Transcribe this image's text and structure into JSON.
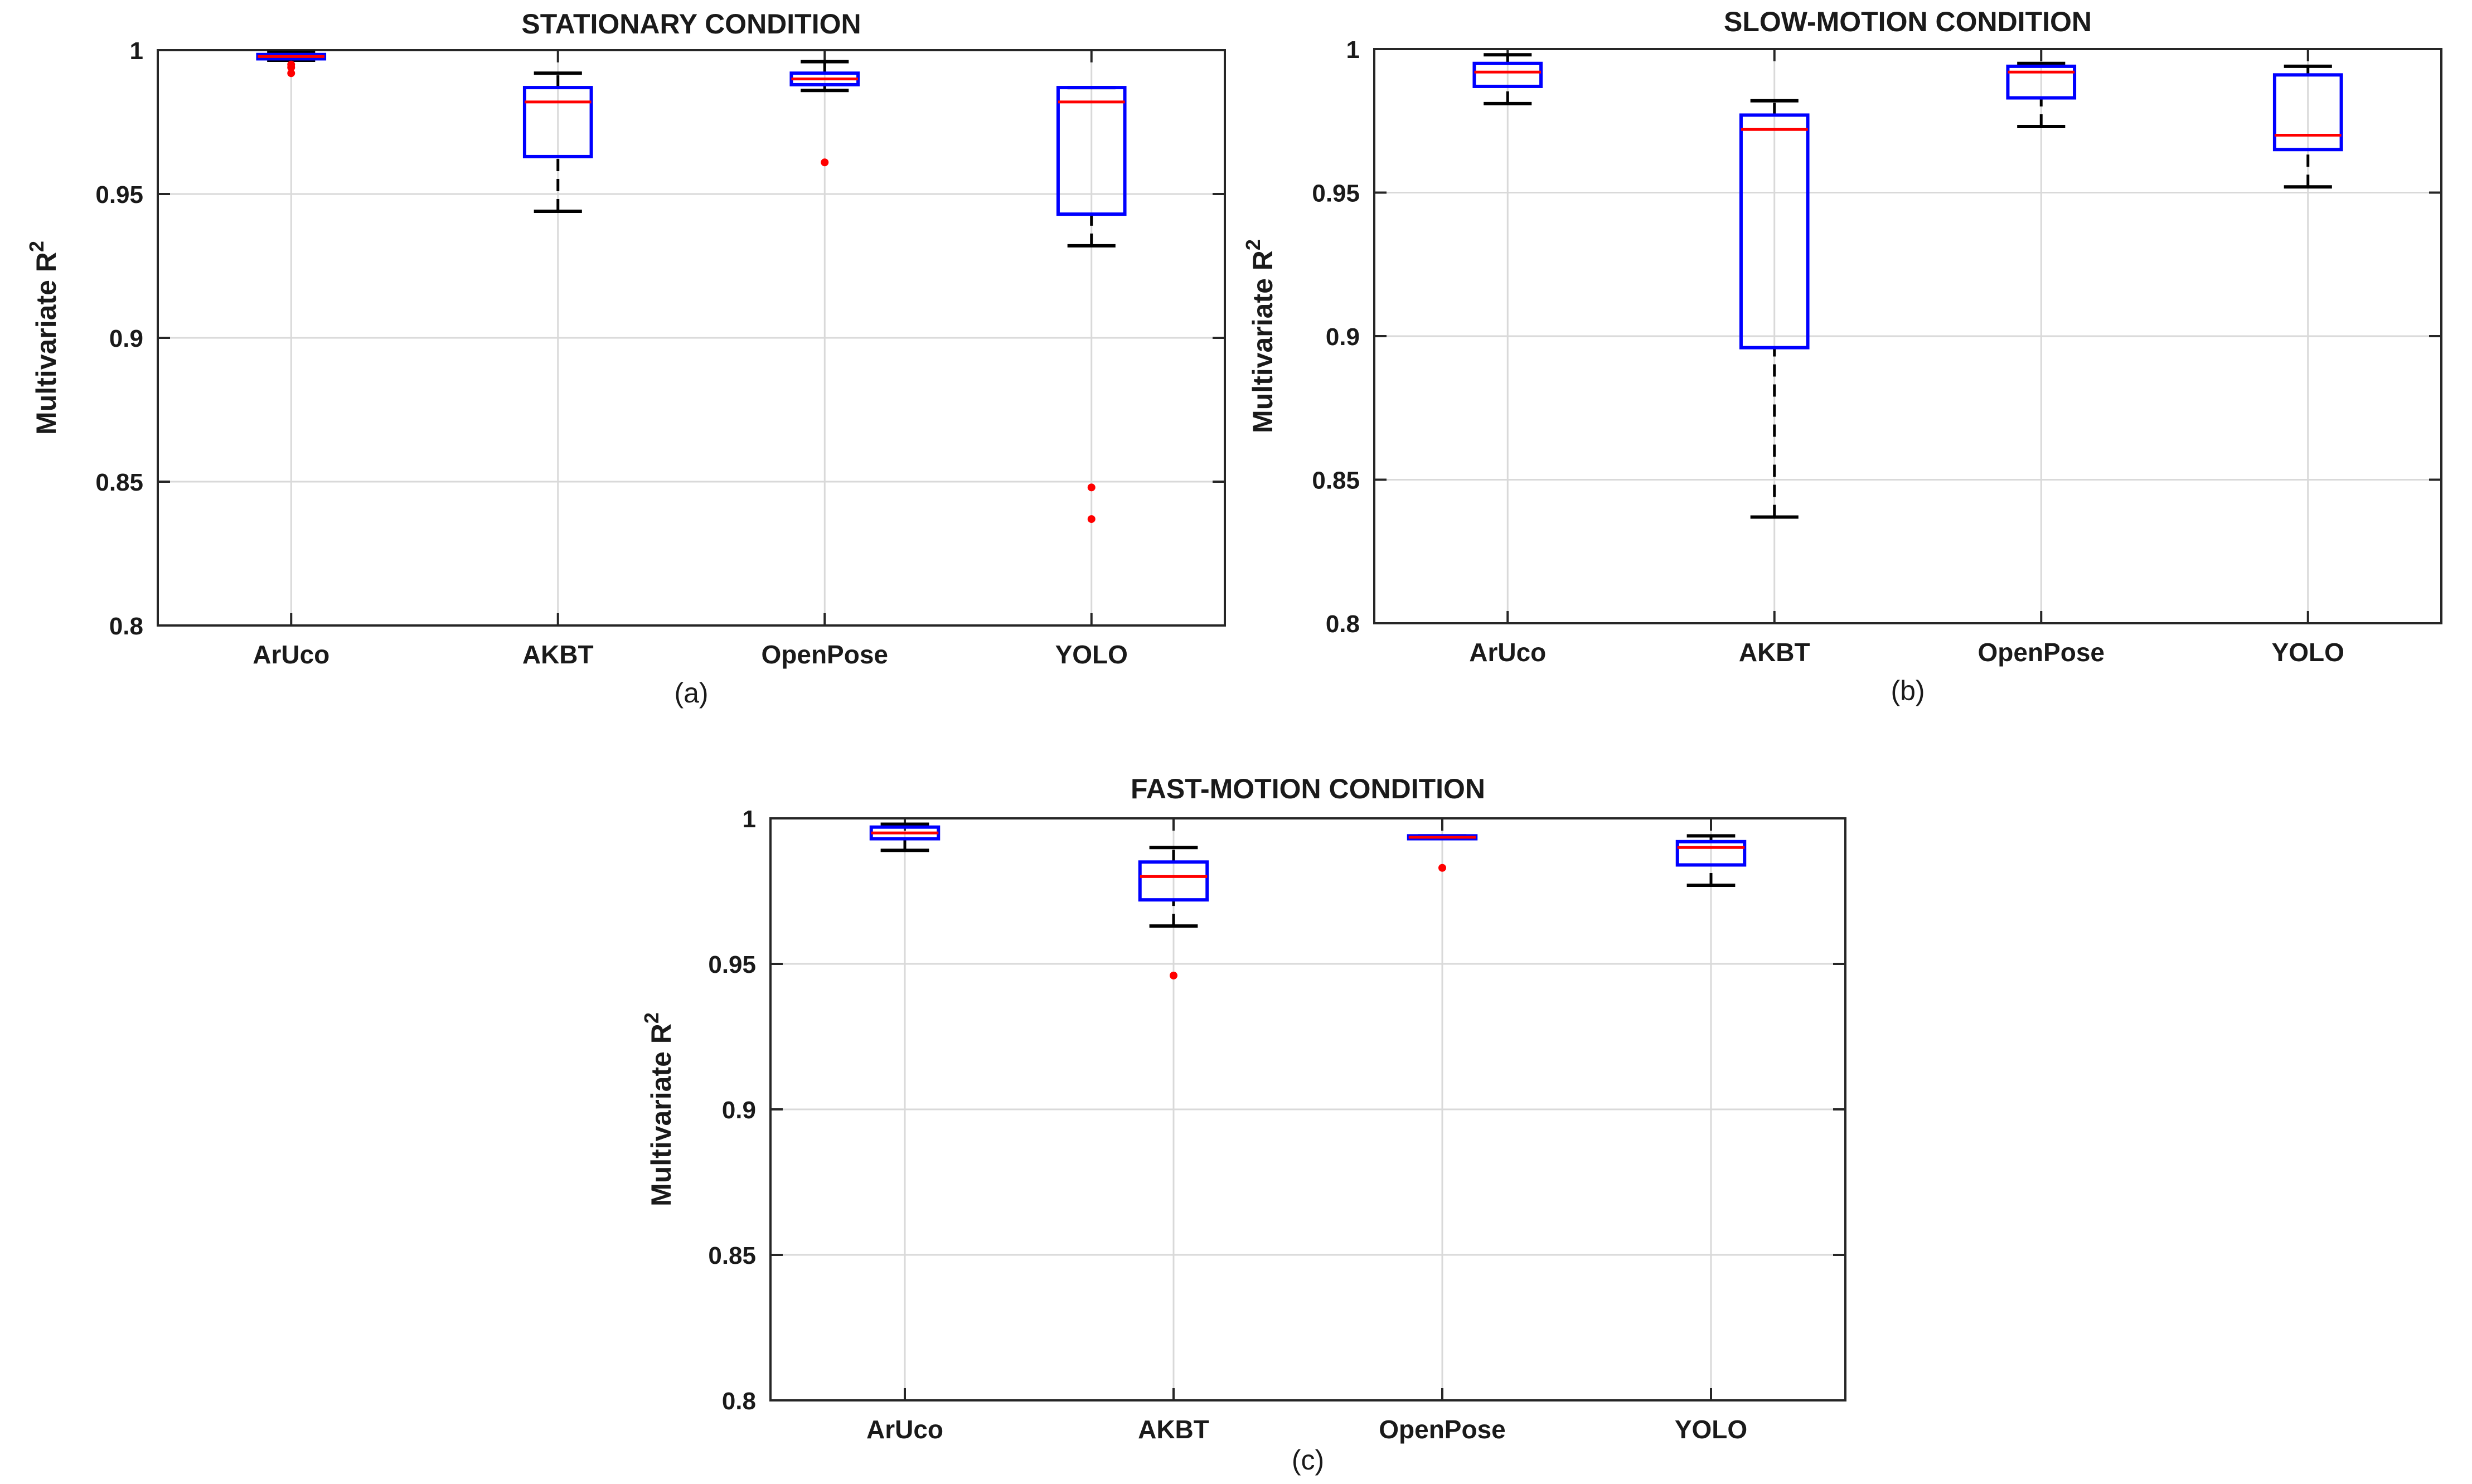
{
  "figure": {
    "ylabel_main": "Multivariate R",
    "ylabel_sup": "2"
  },
  "chart_data": [
    {
      "type": "box",
      "title": "STATIONARY CONDITION",
      "caption": "(a)",
      "categories": [
        "ArUco",
        "AKBT",
        "OpenPose",
        "YOLO"
      ],
      "ylim": [
        0.8,
        1.0
      ],
      "yticks": [
        "0.8",
        "0.85",
        "0.9",
        "0.95",
        "1"
      ],
      "grid": true,
      "boxes": [
        {
          "label": "ArUco",
          "whisker_low": 0.9965,
          "q1": 0.997,
          "median": 0.9978,
          "q3": 0.9985,
          "whisker_high": 0.9993,
          "outliers": [
            0.992,
            0.994,
            0.995
          ]
        },
        {
          "label": "AKBT",
          "whisker_low": 0.944,
          "q1": 0.963,
          "median": 0.982,
          "q3": 0.987,
          "whisker_high": 0.992,
          "outliers": []
        },
        {
          "label": "OpenPose",
          "whisker_low": 0.986,
          "q1": 0.988,
          "median": 0.99,
          "q3": 0.992,
          "whisker_high": 0.996,
          "outliers": [
            0.961
          ]
        },
        {
          "label": "YOLO",
          "whisker_low": 0.932,
          "q1": 0.943,
          "median": 0.982,
          "q3": 0.987,
          "whisker_high": 0.987,
          "outliers": [
            0.848,
            0.837
          ]
        }
      ]
    },
    {
      "type": "box",
      "title": "SLOW-MOTION CONDITION",
      "caption": "(b)",
      "categories": [
        "ArUco",
        "AKBT",
        "OpenPose",
        "YOLO"
      ],
      "ylim": [
        0.8,
        1.0
      ],
      "yticks": [
        "0.8",
        "0.85",
        "0.9",
        "0.95",
        "1"
      ],
      "grid": true,
      "boxes": [
        {
          "label": "ArUco",
          "whisker_low": 0.981,
          "q1": 0.987,
          "median": 0.992,
          "q3": 0.995,
          "whisker_high": 0.998,
          "outliers": []
        },
        {
          "label": "AKBT",
          "whisker_low": 0.837,
          "q1": 0.896,
          "median": 0.972,
          "q3": 0.977,
          "whisker_high": 0.982,
          "outliers": []
        },
        {
          "label": "OpenPose",
          "whisker_low": 0.973,
          "q1": 0.983,
          "median": 0.992,
          "q3": 0.994,
          "whisker_high": 0.995,
          "outliers": []
        },
        {
          "label": "YOLO",
          "whisker_low": 0.952,
          "q1": 0.965,
          "median": 0.97,
          "q3": 0.991,
          "whisker_high": 0.994,
          "outliers": []
        }
      ]
    },
    {
      "type": "box",
      "title": "FAST-MOTION CONDITION",
      "caption": "(c)",
      "categories": [
        "ArUco",
        "AKBT",
        "OpenPose",
        "YOLO"
      ],
      "ylim": [
        0.8,
        1.0
      ],
      "yticks": [
        "0.8",
        "0.85",
        "0.9",
        "0.95",
        "1"
      ],
      "grid": true,
      "boxes": [
        {
          "label": "ArUco",
          "whisker_low": 0.989,
          "q1": 0.993,
          "median": 0.995,
          "q3": 0.997,
          "whisker_high": 0.998,
          "outliers": []
        },
        {
          "label": "AKBT",
          "whisker_low": 0.963,
          "q1": 0.972,
          "median": 0.98,
          "q3": 0.985,
          "whisker_high": 0.99,
          "outliers": [
            0.946
          ]
        },
        {
          "label": "OpenPose",
          "whisker_low": 0.993,
          "q1": 0.993,
          "median": 0.9935,
          "q3": 0.994,
          "whisker_high": 0.994,
          "outliers": [
            0.983
          ]
        },
        {
          "label": "YOLO",
          "whisker_low": 0.977,
          "q1": 0.984,
          "median": 0.99,
          "q3": 0.992,
          "whisker_high": 0.994,
          "outliers": []
        }
      ]
    }
  ],
  "style": {
    "box_color": "#0000ff",
    "median_color": "#ff0000",
    "whisker_color": "#000000",
    "outlier_color": "#ff0000",
    "grid_color": "#d9d9d9",
    "axis_color": "#262626"
  }
}
